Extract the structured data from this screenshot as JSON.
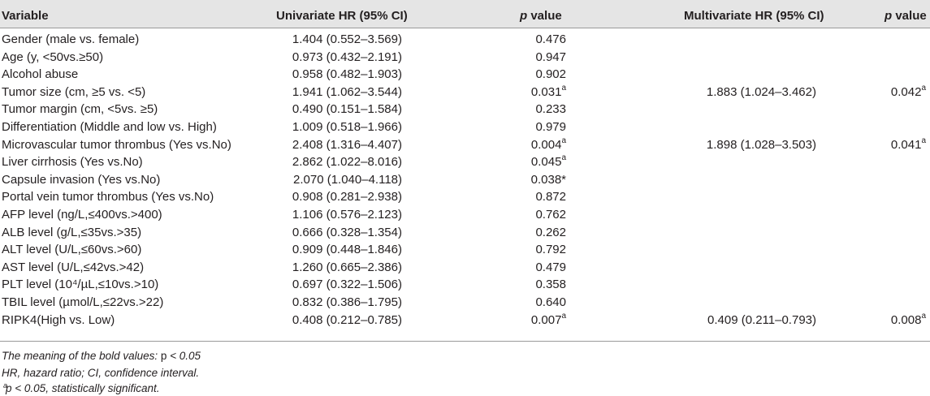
{
  "header": {
    "variable": "Variable",
    "univariate_hr": "Univariate HR (95% CI)",
    "p_value_italic": "p",
    "p_value_rest": " value",
    "multivariate_hr": "Multivariate HR (95% CI)"
  },
  "rows": [
    {
      "variable": "Gender (male vs. female)",
      "uni_hr": "1.404 (0.552–3.569)",
      "uni_p": "0.476",
      "uni_p_sup": "",
      "multi_hr": "",
      "multi_p": "",
      "multi_p_sup": ""
    },
    {
      "variable": "Age (y, <50vs.≥50)",
      "uni_hr": "0.973 (0.432–2.191)",
      "uni_p": "0.947",
      "uni_p_sup": "",
      "multi_hr": "",
      "multi_p": "",
      "multi_p_sup": ""
    },
    {
      "variable": "Alcohol abuse",
      "uni_hr": "0.958 (0.482–1.903)",
      "uni_p": "0.902",
      "uni_p_sup": "",
      "multi_hr": "",
      "multi_p": "",
      "multi_p_sup": ""
    },
    {
      "variable": "Tumor size (cm, ≥5 vs. <5)",
      "uni_hr": "1.941 (1.062–3.544)",
      "uni_p": "0.031",
      "uni_p_sup": "a",
      "multi_hr": "1.883 (1.024–3.462)",
      "multi_p": "0.042",
      "multi_p_sup": "a"
    },
    {
      "variable": "Tumor margin (cm, <5vs. ≥5)",
      "uni_hr": "0.490 (0.151–1.584)",
      "uni_p": "0.233",
      "uni_p_sup": "",
      "multi_hr": "",
      "multi_p": "",
      "multi_p_sup": ""
    },
    {
      "variable": "Differentiation (Middle and low vs. High)",
      "uni_hr": "1.009 (0.518–1.966)",
      "uni_p": "0.979",
      "uni_p_sup": "",
      "multi_hr": "",
      "multi_p": "",
      "multi_p_sup": ""
    },
    {
      "variable": "Microvascular tumor thrombus (Yes vs.No)",
      "uni_hr": "2.408 (1.316–4.407)",
      "uni_p": "0.004",
      "uni_p_sup": "a",
      "multi_hr": "1.898 (1.028–3.503)",
      "multi_p": "0.041",
      "multi_p_sup": "a"
    },
    {
      "variable": "Liver cirrhosis (Yes vs.No)",
      "uni_hr": "2.862 (1.022–8.016)",
      "uni_p": "0.045",
      "uni_p_sup": "a",
      "multi_hr": "",
      "multi_p": "",
      "multi_p_sup": ""
    },
    {
      "variable": "Capsule invasion (Yes vs.No)",
      "uni_hr": "2.070 (1.040–4.118)",
      "uni_p": "0.038*",
      "uni_p_sup": "",
      "multi_hr": "",
      "multi_p": "",
      "multi_p_sup": ""
    },
    {
      "variable": "Portal vein tumor thrombus (Yes vs.No)",
      "uni_hr": "0.908 (0.281–2.938)",
      "uni_p": "0.872",
      "uni_p_sup": "",
      "multi_hr": "",
      "multi_p": "",
      "multi_p_sup": ""
    },
    {
      "variable": "AFP level (ng/L,≤400vs.>400)",
      "uni_hr": "1.106 (0.576–2.123)",
      "uni_p": "0.762",
      "uni_p_sup": "",
      "multi_hr": "",
      "multi_p": "",
      "multi_p_sup": ""
    },
    {
      "variable": "ALB level (g/L,≤35vs.>35)",
      "uni_hr": "0.666 (0.328–1.354)",
      "uni_p": "0.262",
      "uni_p_sup": "",
      "multi_hr": "",
      "multi_p": "",
      "multi_p_sup": ""
    },
    {
      "variable": "ALT level (U/L,≤60vs.>60)",
      "uni_hr": "0.909 (0.448–1.846)",
      "uni_p": "0.792",
      "uni_p_sup": "",
      "multi_hr": "",
      "multi_p": "",
      "multi_p_sup": ""
    },
    {
      "variable": "AST level (U/L,≤42vs.>42)",
      "uni_hr": "1.260 (0.665–2.386)",
      "uni_p": "0.479",
      "uni_p_sup": "",
      "multi_hr": "",
      "multi_p": "",
      "multi_p_sup": ""
    },
    {
      "variable": "PLT level (10⁴/µL,≤10vs.>10)",
      "uni_hr": "0.697 (0.322–1.506)",
      "uni_p": "0.358",
      "uni_p_sup": "",
      "multi_hr": "",
      "multi_p": "",
      "multi_p_sup": ""
    },
    {
      "variable": "TBIL level (µmol/L,≤22vs.>22)",
      "uni_hr": "0.832 (0.386–1.795)",
      "uni_p": "0.640",
      "uni_p_sup": "",
      "multi_hr": "",
      "multi_p": "",
      "multi_p_sup": ""
    },
    {
      "variable": "RIPK4(High vs. Low)",
      "uni_hr": "0.408 (0.212–0.785)",
      "uni_p": "0.007",
      "uni_p_sup": "a",
      "multi_hr": "0.409 (0.211–0.793)",
      "multi_p": "0.008",
      "multi_p_sup": "a"
    }
  ],
  "notes": {
    "note1_italic": "The meaning of the bold values: ",
    "note1_plain": "p",
    "note1_end": " < 0.05",
    "note2": "HR, hazard ratio; CI, confidence interval.",
    "note3_sup": "a",
    "note3_p": "p",
    "note3_rest": " < 0.05, statistically significant."
  }
}
